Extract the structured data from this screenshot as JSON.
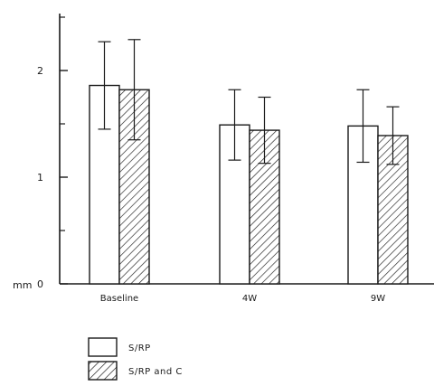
{
  "chart_data": {
    "type": "bar",
    "categories": [
      "Baseline",
      "4W",
      "9W"
    ],
    "series": [
      {
        "name": "S/RP",
        "values": [
          1.86,
          1.49,
          1.48
        ],
        "error": [
          0.41,
          0.33,
          0.34
        ],
        "fill": "#ffffff",
        "pattern": "none"
      },
      {
        "name": "S/RP and C",
        "values": [
          1.82,
          1.44,
          1.39
        ],
        "error": [
          0.47,
          0.31,
          0.27
        ],
        "fill": "#ffffff",
        "pattern": "diagonal-hatch"
      }
    ],
    "y_axis": {
      "unit_label": "mm",
      "ylim": [
        0,
        2.5
      ],
      "tick_labels": [
        "0",
        "1",
        "2"
      ],
      "tick_values": [
        0,
        1,
        2
      ],
      "minor_tick_values": [
        0.5,
        1.5,
        2.5
      ]
    },
    "title": "",
    "xlabel": "",
    "ylabel": "",
    "grid": false,
    "legend_position": "bottom-left",
    "colors": {
      "ink": "#1a1a1a",
      "background": "#ffffff"
    }
  }
}
